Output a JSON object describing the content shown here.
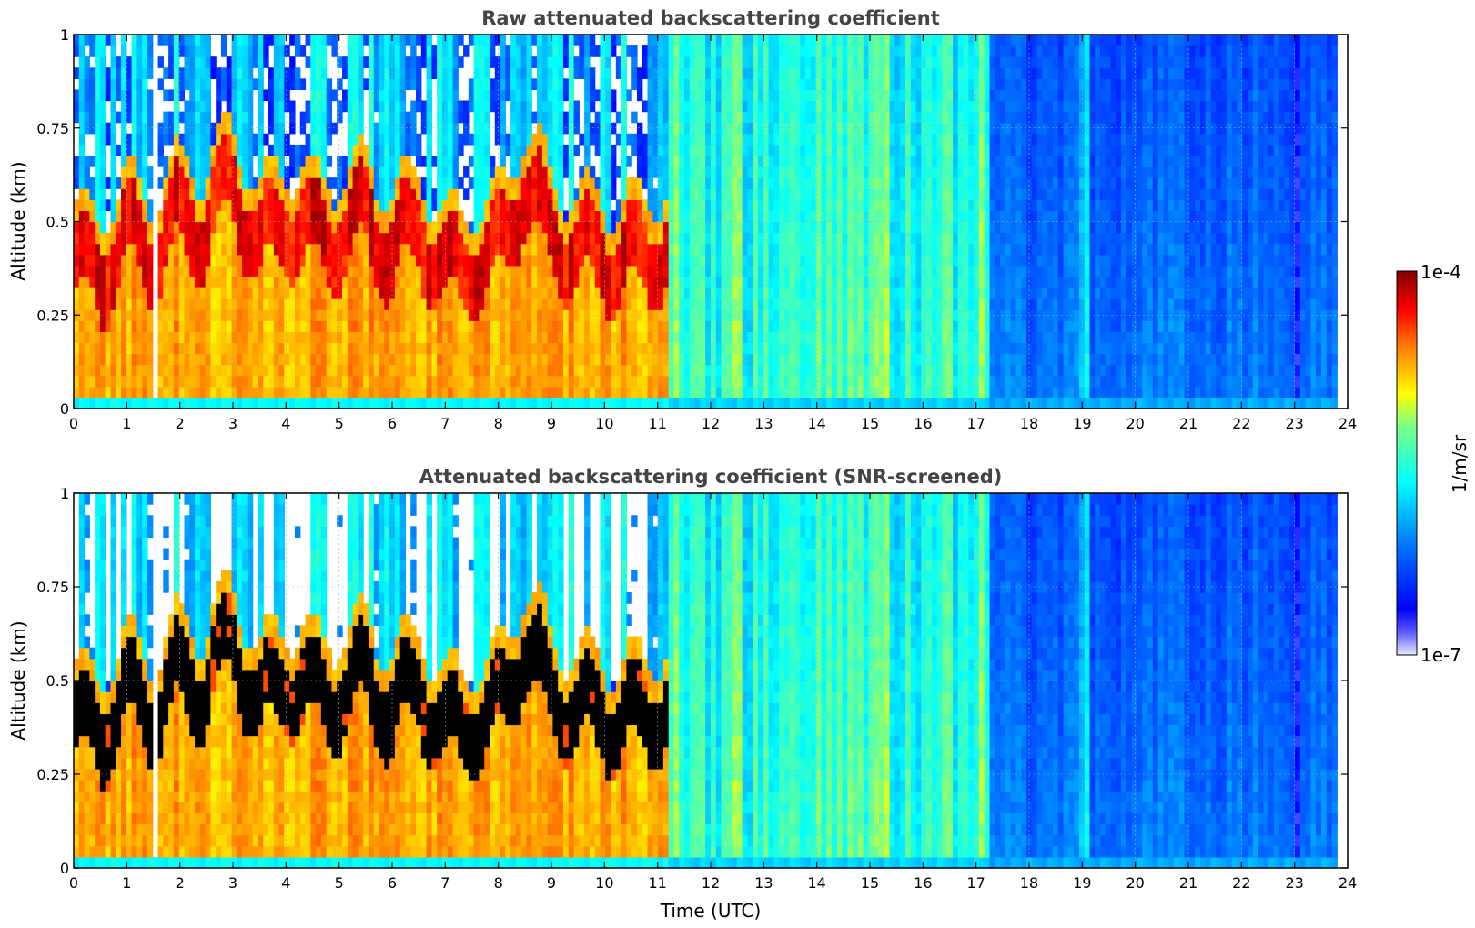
{
  "chart_data": [
    {
      "type": "heatmap",
      "title": "Raw attenuated backscattering coefficient",
      "xlabel": "",
      "ylabel": "Altitude (km)",
      "xlim": [
        0,
        24
      ],
      "ylim": [
        0,
        1
      ],
      "xticks": [
        "0",
        "1",
        "2",
        "3",
        "4",
        "5",
        "6",
        "7",
        "8",
        "9",
        "10",
        "11",
        "12",
        "13",
        "14",
        "15",
        "16",
        "17",
        "18",
        "19",
        "20",
        "21",
        "22",
        "23",
        "24"
      ],
      "yticks": [
        "0",
        "0.25",
        "0.5",
        "0.75",
        "1"
      ],
      "grid": true,
      "data_end_time": 23.8,
      "cloud_base_km": [
        [
          0.0,
          0.48
        ],
        [
          0.5,
          0.45
        ],
        [
          1.0,
          0.55
        ],
        [
          1.5,
          0.5
        ],
        [
          2.0,
          0.6
        ],
        [
          2.5,
          0.58
        ],
        [
          3.0,
          0.7
        ],
        [
          3.5,
          0.52
        ],
        [
          4.0,
          0.6
        ],
        [
          4.5,
          0.55
        ],
        [
          5.0,
          0.56
        ],
        [
          5.5,
          0.6
        ],
        [
          6.0,
          0.5
        ],
        [
          6.5,
          0.58
        ],
        [
          7.0,
          0.45
        ],
        [
          7.5,
          0.48
        ],
        [
          8.0,
          0.5
        ],
        [
          8.5,
          0.7
        ],
        [
          9.0,
          0.55
        ],
        [
          9.5,
          0.5
        ],
        [
          10.0,
          0.5
        ],
        [
          10.5,
          0.48
        ],
        [
          11.0,
          0.52
        ]
      ],
      "screened": false
    },
    {
      "type": "heatmap",
      "title": "Attenuated backscattering coefficient (SNR-screened)",
      "xlabel": "Time (UTC)",
      "ylabel": "Altitude (km)",
      "xlim": [
        0,
        24
      ],
      "ylim": [
        0,
        1
      ],
      "xticks": [
        "0",
        "1",
        "2",
        "3",
        "4",
        "5",
        "6",
        "7",
        "8",
        "9",
        "10",
        "11",
        "12",
        "13",
        "14",
        "15",
        "16",
        "17",
        "18",
        "19",
        "20",
        "21",
        "22",
        "23",
        "24"
      ],
      "yticks": [
        "0",
        "0.25",
        "0.5",
        "0.75",
        "1"
      ],
      "grid": true,
      "data_end_time": 23.8,
      "screened": true
    }
  ],
  "colorbar": {
    "label": "1/m/sr",
    "max_label": "1e-4",
    "min_label": "1e-7",
    "scale": "log",
    "range": [
      1e-07,
      0.0001
    ],
    "colormap": [
      "#e8e8ff",
      "#0000ff",
      "#00ffff",
      "#ffff00",
      "#ff0000",
      "#800000"
    ]
  },
  "colors": {
    "title": "#444444",
    "screened_overflow": "#000000"
  }
}
